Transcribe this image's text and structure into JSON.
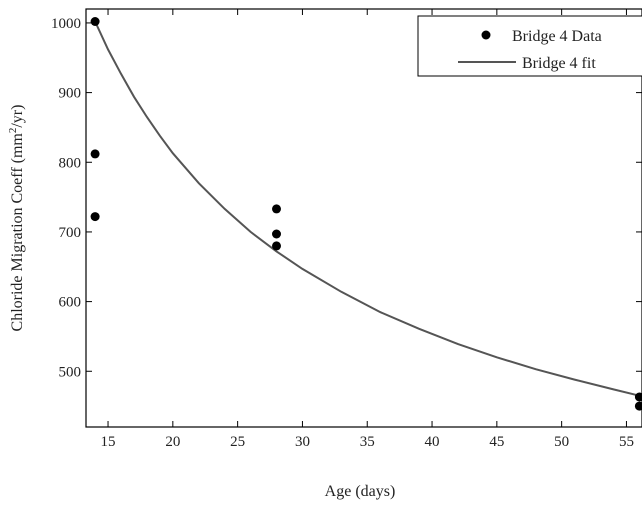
{
  "chart_data": {
    "type": "scatter",
    "xlabel": "Age (days)",
    "ylabel_prefix": "Chloride Migration Coeff (mm",
    "ylabel_sup": "2",
    "ylabel_suffix": "/yr)",
    "xlim": [
      13.3,
      56.2
    ],
    "ylim": [
      420,
      1020
    ],
    "xticks": [
      15,
      20,
      25,
      30,
      35,
      40,
      45,
      50,
      55
    ],
    "yticks": [
      500,
      600,
      700,
      800,
      900,
      1000
    ],
    "xtick_labels": [
      "15",
      "20",
      "25",
      "30",
      "35",
      "40",
      "45",
      "50",
      "55"
    ],
    "ytick_labels": [
      "500",
      "600",
      "700",
      "800",
      "900",
      "1000"
    ],
    "legend_position": "top-right",
    "series": [
      {
        "name": "Bridge 4 Data",
        "kind": "points",
        "color": "#000000",
        "x": [
          14,
          14,
          14,
          28,
          28,
          28,
          56,
          56
        ],
        "y": [
          1002,
          812,
          722,
          733,
          697,
          680,
          463,
          450
        ]
      },
      {
        "name": "Bridge 4 fit",
        "kind": "line",
        "color": "#555555",
        "x": [
          14,
          15,
          16,
          17,
          18,
          19,
          20,
          22,
          24,
          26,
          28,
          30,
          33,
          36,
          39,
          42,
          45,
          48,
          51,
          54,
          56.2
        ],
        "y": [
          1002,
          962,
          927,
          894,
          865,
          838,
          813,
          770,
          733,
          700,
          672,
          647,
          614,
          585,
          561,
          539,
          520,
          503,
          488,
          474,
          464
        ]
      }
    ]
  }
}
